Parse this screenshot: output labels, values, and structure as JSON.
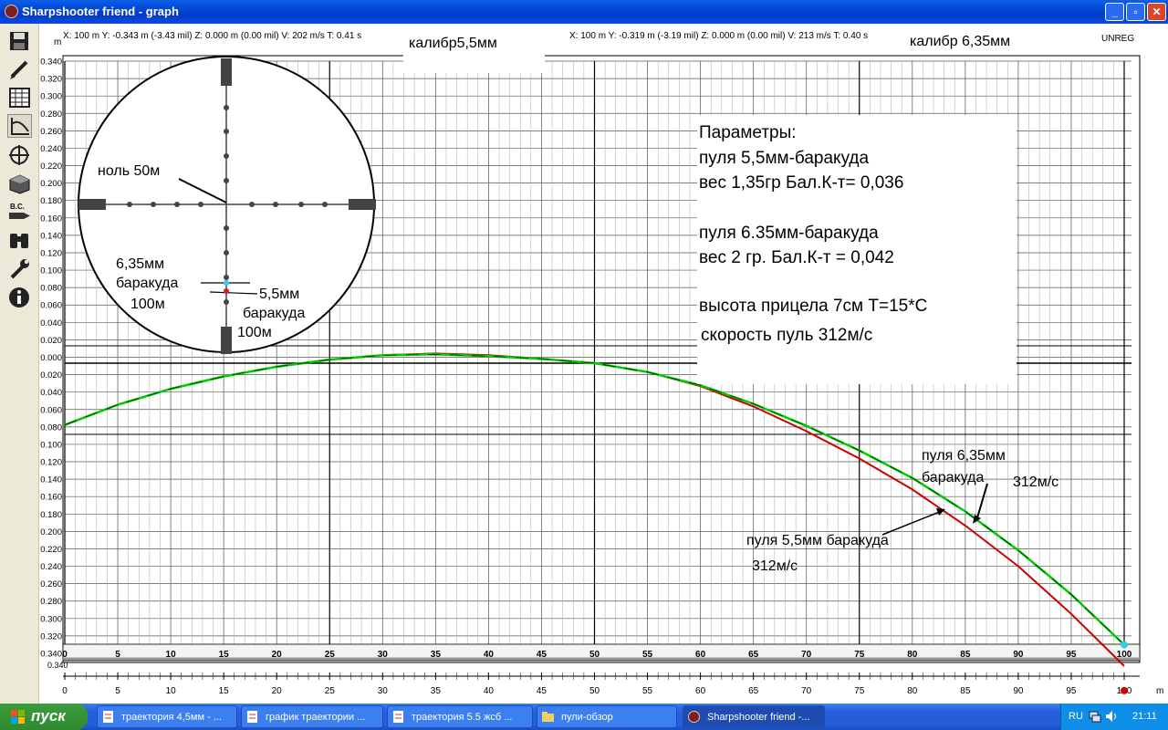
{
  "window": {
    "title": "Sharpshooter friend - graph",
    "min": "_",
    "max": "▫",
    "close": "✕"
  },
  "toolbar": [
    "save-icon",
    "pencil-icon",
    "table-icon",
    "graph-icon",
    "crosshair-icon",
    "bullet-box-icon",
    "bc-icon",
    "binoculars-icon",
    "wrench-icon",
    "info-icon"
  ],
  "readout_left": "X: 100 m  Y: -0.343 m (-3.43 mil)  Z: 0.000 m (0.00 mil)  V: 202 m/s  T: 0.41 s",
  "readout_right": "X: 100 m  Y: -0.319 m (-3.19 mil)  Z: 0.000 m (0.00 mil)  V: 213 m/s  T: 0.40 s",
  "unreg": "UNREG",
  "caliber_left": "калибр5,5мм",
  "caliber_right": "калибр 6,35мм",
  "reticle": {
    "zero": "ноль 50м",
    "lbl635": [
      "6,35мм",
      "баракуда",
      "100м"
    ],
    "lbl55": [
      "5,5мм",
      "баракуда",
      "100м"
    ]
  },
  "params": [
    "Параметры:",
    "пуля 5,5мм-баракуда",
    "вес 1,35гр Бал.К-т= 0,036",
    "",
    "пуля 6.35мм-баракуда",
    "вес 2 гр. Бал.К-т = 0,042",
    "",
    "высота прицела 7см Т=15*С",
    "скорость пуль 312м/с"
  ],
  "annot635": [
    "пуля 6,35мм",
    "баракуда",
    "312м/с"
  ],
  "annot55": [
    "пуля 5,5мм баракуда",
    "312м/с"
  ],
  "taskbar": {
    "start": "пуск",
    "items": [
      "траектория 4,5мм - ...",
      "график траектории ...",
      "траектория 5.5 жсб ...",
      "пули-обзор",
      "Sharpshooter friend -..."
    ],
    "lang": "RU",
    "time": "21:11"
  },
  "chart_data": {
    "type": "line",
    "xlabel": "m",
    "ylabel": "m",
    "xlim": [
      0,
      100
    ],
    "ylim": [
      -0.34,
      0.34
    ],
    "x_ticks": [
      0,
      5,
      10,
      15,
      20,
      25,
      30,
      35,
      40,
      45,
      50,
      55,
      60,
      65,
      70,
      75,
      80,
      85,
      90,
      95,
      100
    ],
    "y_ticks": [
      "0.340",
      "0.320",
      "0.300",
      "0.280",
      "0.260",
      "0.240",
      "0.220",
      "0.200",
      "0.180",
      "0.160",
      "0.140",
      "0.120",
      "0.100",
      "0.080",
      "0.060",
      "0.040",
      "0.020",
      "0.000",
      "0.020",
      "0.040",
      "0.060",
      "0.080",
      "0.100",
      "0.120",
      "0.140",
      "0.160",
      "0.180",
      "0.200",
      "0.220",
      "0.240",
      "0.260",
      "0.280",
      "0.300",
      "0.320",
      "0.340"
    ],
    "grid": true,
    "series": [
      {
        "name": "пуля 6,35мм баракуда",
        "color": "#00cc00",
        "x": [
          0,
          5,
          10,
          15,
          20,
          25,
          30,
          35,
          40,
          45,
          50,
          55,
          60,
          65,
          70,
          75,
          80,
          85,
          90,
          95,
          100
        ],
        "y": [
          -0.07,
          -0.047,
          -0.029,
          -0.015,
          -0.004,
          0.004,
          0.009,
          0.01,
          0.008,
          0.005,
          0.0,
          -0.01,
          -0.025,
          -0.046,
          -0.071,
          -0.099,
          -0.13,
          -0.168,
          -0.212,
          -0.262,
          -0.319
        ]
      },
      {
        "name": "пуля 5,5мм баракуда",
        "color": "#cc0000",
        "x": [
          0,
          5,
          10,
          15,
          20,
          25,
          30,
          35,
          40,
          45,
          50,
          55,
          60,
          65,
          70,
          75,
          80,
          85,
          90,
          95,
          100
        ],
        "y": [
          -0.07,
          -0.047,
          -0.029,
          -0.015,
          -0.004,
          0.004,
          0.009,
          0.011,
          0.009,
          0.005,
          0.0,
          -0.01,
          -0.026,
          -0.049,
          -0.077,
          -0.108,
          -0.143,
          -0.184,
          -0.23,
          -0.284,
          -0.343
        ]
      }
    ]
  }
}
